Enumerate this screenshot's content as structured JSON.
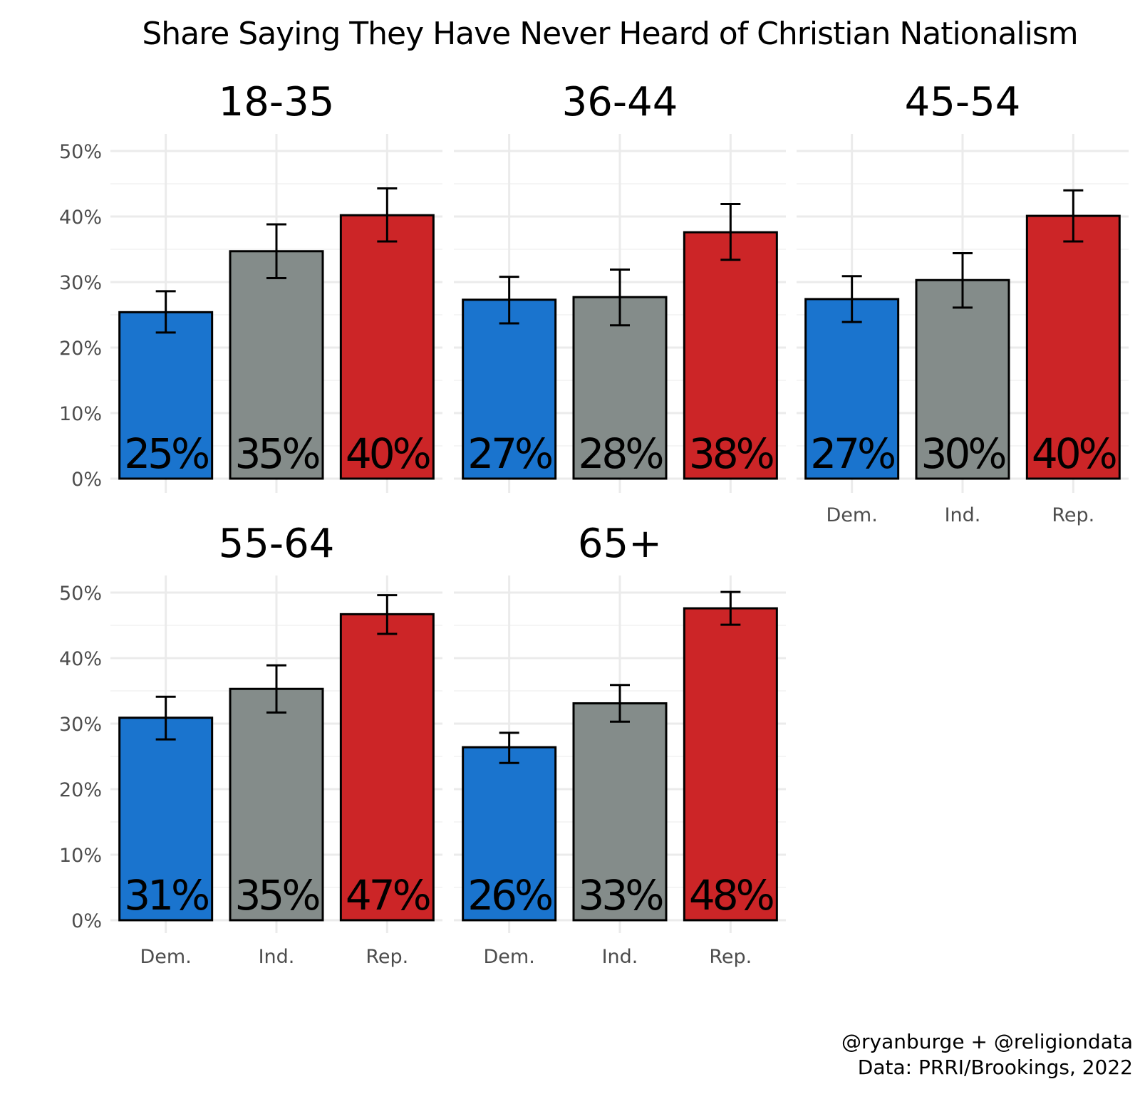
{
  "chart_data": {
    "type": "bar",
    "title": "Share Saying They Have Never Heard of Christian Nationalism",
    "categories": [
      "Dem.",
      "Ind.",
      "Rep."
    ],
    "colors": [
      "#1a74ce",
      "#848c8a",
      "#cc2527"
    ],
    "ylim": [
      0,
      50
    ],
    "y_ticks": [
      "0%",
      "10%",
      "20%",
      "30%",
      "40%",
      "50%"
    ],
    "xlabel": "",
    "ylabel": "",
    "facets": [
      {
        "title": "18-35",
        "values": [
          25.4,
          34.7,
          40.2
        ],
        "err_low": [
          22.3,
          30.6,
          36.2
        ],
        "err_high": [
          28.6,
          38.8,
          44.3
        ],
        "labels": [
          "25%",
          "35%",
          "40%"
        ]
      },
      {
        "title": "36-44",
        "values": [
          27.3,
          27.7,
          37.6
        ],
        "err_low": [
          23.7,
          23.4,
          33.4
        ],
        "err_high": [
          30.8,
          31.9,
          41.9
        ],
        "labels": [
          "27%",
          "28%",
          "38%"
        ]
      },
      {
        "title": "45-54",
        "values": [
          27.4,
          30.3,
          40.1
        ],
        "err_low": [
          23.9,
          26.1,
          36.2
        ],
        "err_high": [
          30.9,
          34.4,
          44.0
        ],
        "labels": [
          "27%",
          "30%",
          "40%"
        ]
      },
      {
        "title": "55-64",
        "values": [
          30.9,
          35.3,
          46.7
        ],
        "err_low": [
          27.6,
          31.7,
          43.7
        ],
        "err_high": [
          34.1,
          38.9,
          49.6
        ],
        "labels": [
          "31%",
          "35%",
          "47%"
        ]
      },
      {
        "title": "65+",
        "values": [
          26.4,
          33.1,
          47.6
        ],
        "err_low": [
          24.0,
          30.3,
          45.1
        ],
        "err_high": [
          28.6,
          35.9,
          50.1
        ],
        "labels": [
          "26%",
          "33%",
          "48%"
        ]
      }
    ],
    "caption": [
      "@ryanburge + @religiondata",
      "Data: PRRI/Brookings, 2022"
    ]
  }
}
